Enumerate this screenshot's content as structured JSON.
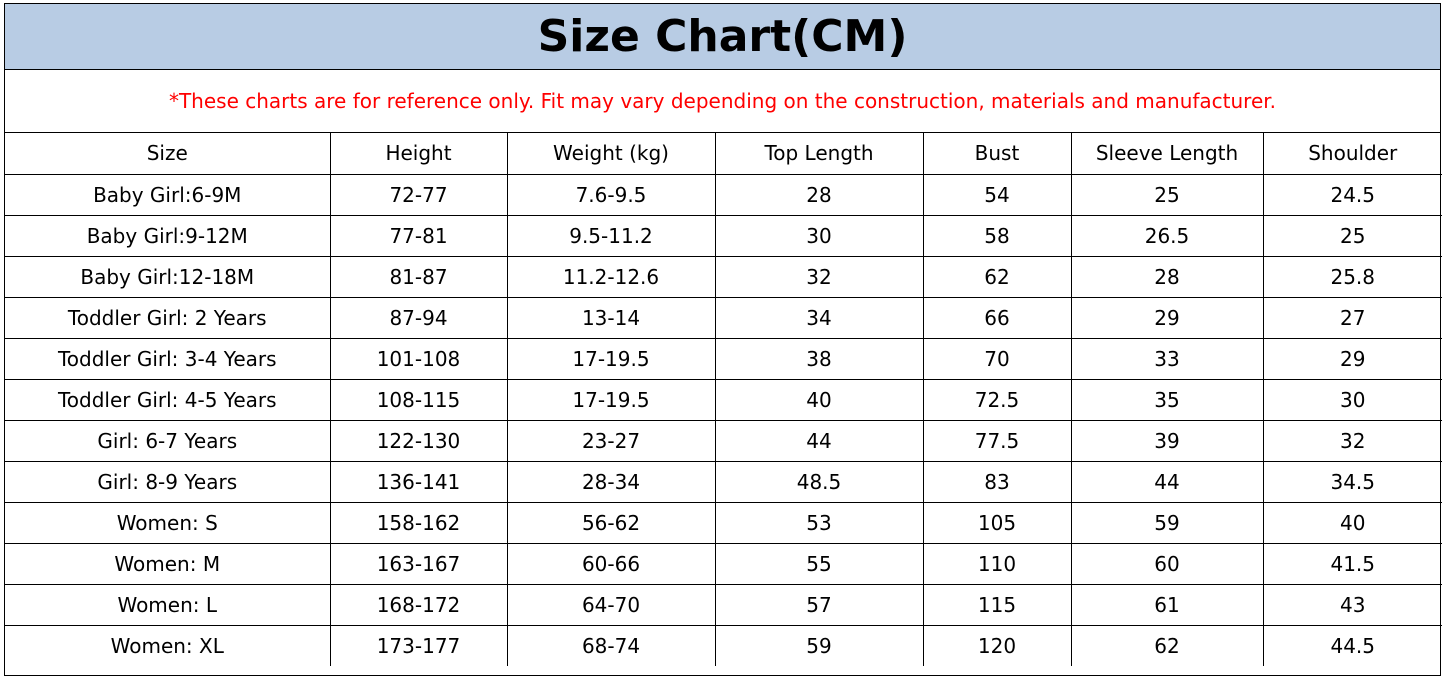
{
  "title": "Size Chart(CM)",
  "note": "*These charts are for reference only. Fit may vary depending on the construction, materials and manufacturer.",
  "colors": {
    "title_background": "#b8cce4",
    "note_text": "#ff0000"
  },
  "headers": [
    "Size",
    "Height",
    "Weight (kg)",
    "Top Length",
    "Bust",
    "Sleeve Length",
    "Shoulder"
  ],
  "rows": [
    [
      "Baby Girl:6-9M",
      "72-77",
      "7.6-9.5",
      "28",
      "54",
      "25",
      "24.5"
    ],
    [
      "Baby Girl:9-12M",
      "77-81",
      "9.5-11.2",
      "30",
      "58",
      "26.5",
      "25"
    ],
    [
      "Baby Girl:12-18M",
      "81-87",
      "11.2-12.6",
      "32",
      "62",
      "28",
      "25.8"
    ],
    [
      "Toddler Girl: 2 Years",
      "87-94",
      "13-14",
      "34",
      "66",
      "29",
      "27"
    ],
    [
      "Toddler Girl: 3-4 Years",
      "101-108",
      "17-19.5",
      "38",
      "70",
      "33",
      "29"
    ],
    [
      "Toddler Girl: 4-5 Years",
      "108-115",
      "17-19.5",
      "40",
      "72.5",
      "35",
      "30"
    ],
    [
      "Girl: 6-7 Years",
      "122-130",
      "23-27",
      "44",
      "77.5",
      "39",
      "32"
    ],
    [
      "Girl: 8-9 Years",
      "136-141",
      "28-34",
      "48.5",
      "83",
      "44",
      "34.5"
    ],
    [
      "Women: S",
      "158-162",
      "56-62",
      "53",
      "105",
      "59",
      "40"
    ],
    [
      "Women: M",
      "163-167",
      "60-66",
      "55",
      "110",
      "60",
      "41.5"
    ],
    [
      "Women: L",
      "168-172",
      "64-70",
      "57",
      "115",
      "61",
      "43"
    ],
    [
      "Women: XL",
      "173-177",
      "68-74",
      "59",
      "120",
      "62",
      "44.5"
    ]
  ]
}
